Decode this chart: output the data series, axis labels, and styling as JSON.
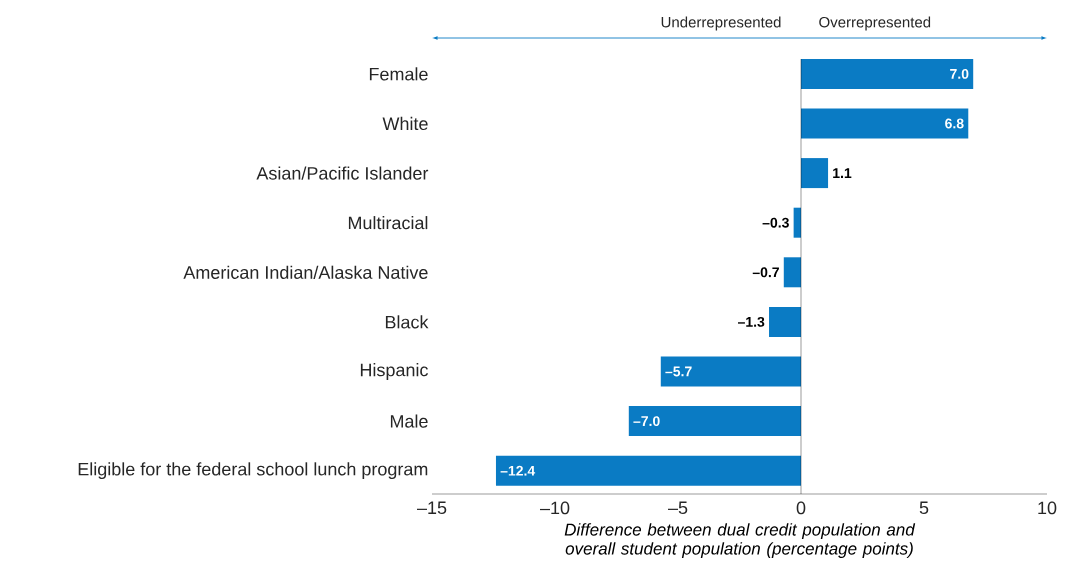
{
  "chart_data": {
    "type": "bar",
    "orientation": "horizontal",
    "categories": [
      "Female",
      "White",
      "Asian/Pacific Islander",
      "Multiracial",
      "American Indian/Alaska Native",
      "Black",
      "Hispanic",
      "Male",
      "Eligible for the federal school lunch program"
    ],
    "values": [
      7.0,
      6.8,
      1.1,
      -0.3,
      -0.7,
      -1.3,
      -5.7,
      -7.0,
      -12.4
    ],
    "value_labels": [
      "7.0",
      "6.8",
      "1.1",
      "–0.3",
      "–0.7",
      "–1.3",
      "–5.7",
      "–7.0",
      "–12.4"
    ],
    "color": "#0a7bc4",
    "xlim": [
      -15,
      10
    ],
    "xticks": [
      {
        "value": -15,
        "label": "–15"
      },
      {
        "value": -10,
        "label": "–10"
      },
      {
        "value": -5,
        "label": "–5"
      },
      0,
      5,
      10
    ],
    "xlabel": "Difference between dual credit population and overall student population (percentage points)",
    "annotations": [
      "Underrepresented",
      "Overrepresented"
    ]
  }
}
